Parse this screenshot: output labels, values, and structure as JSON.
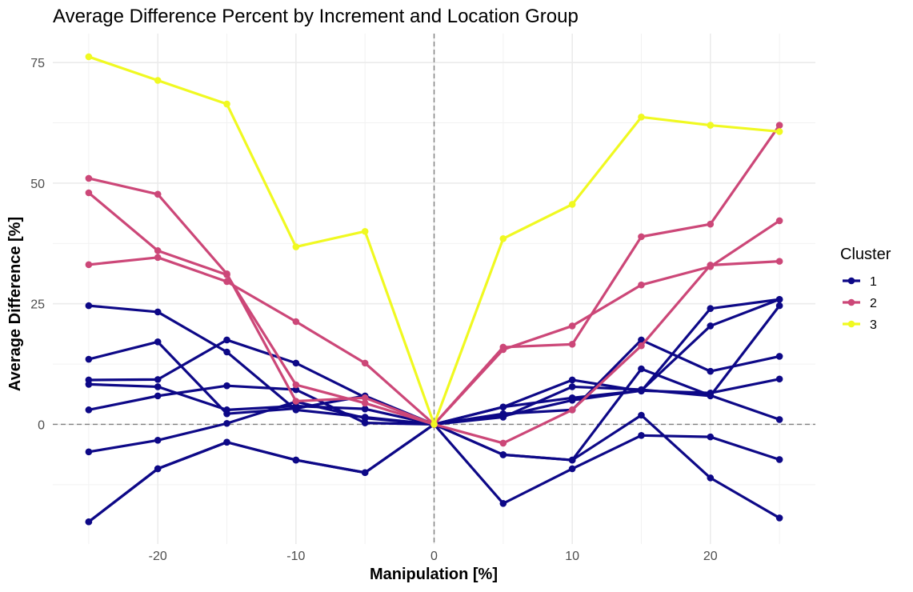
{
  "chart_data": {
    "type": "line",
    "title": "Average Difference Percent by Increment and Location Group",
    "xlabel": "Manipulation [%]",
    "ylabel": "Average Difference [%]",
    "xlim": [
      -27.6,
      27.6
    ],
    "ylim": [
      -24.8,
      81
    ],
    "x_ticks": [
      -20,
      -10,
      0,
      10,
      20
    ],
    "y_ticks": [
      0,
      25,
      50,
      75
    ],
    "x_tick_labels": [
      "-20",
      "-10",
      "0",
      "10",
      "20"
    ],
    "y_tick_labels": [
      "0",
      "25",
      "50",
      "75"
    ],
    "grid": true,
    "reference_lines": {
      "x": 0,
      "y": 0,
      "style": "dashed"
    },
    "legend": {
      "title": "Cluster",
      "placement": "right",
      "entries": [
        {
          "label": "1",
          "color": "#0d0887"
        },
        {
          "label": "2",
          "color": "#cc4778"
        },
        {
          "label": "3",
          "color": "#f0f921"
        }
      ]
    },
    "x": [
      -25,
      -20,
      -15,
      -10,
      -5,
      0,
      5,
      10,
      15,
      20,
      25
    ],
    "series": [
      {
        "cluster": "1",
        "color": "#0d0887",
        "values": [
          24.6,
          23.3,
          15.0,
          3.0,
          1.5,
          0,
          1.5,
          7.8,
          7.2,
          5.9,
          24.6
        ]
      },
      {
        "cluster": "1",
        "color": "#0d0887",
        "values": [
          13.5,
          17.1,
          2.2,
          3.3,
          5.9,
          0,
          3.6,
          5.5,
          7.0,
          20.4,
          25.9
        ]
      },
      {
        "cluster": "1",
        "color": "#0d0887",
        "values": [
          9.2,
          9.3,
          17.5,
          12.7,
          5.6,
          0,
          2.2,
          3.0,
          17.5,
          11.0,
          14.1
        ]
      },
      {
        "cluster": "1",
        "color": "#0d0887",
        "values": [
          8.3,
          7.8,
          3.0,
          3.8,
          3.2,
          0,
          1.7,
          5.0,
          7.0,
          6.5,
          9.4
        ]
      },
      {
        "cluster": "1",
        "color": "#0d0887",
        "values": [
          3.0,
          5.9,
          8.0,
          7.2,
          0.3,
          0,
          3.6,
          9.2,
          6.9,
          24.0,
          25.9
        ]
      },
      {
        "cluster": "1",
        "color": "#0d0887",
        "values": [
          -5.7,
          -3.3,
          0.2,
          4.7,
          1.3,
          0,
          -6.3,
          -7.4,
          11.5,
          6.0,
          1.0
        ]
      },
      {
        "cluster": "1",
        "color": "#0d0887",
        "values": [
          -20.2,
          -9.2,
          -3.7,
          -7.4,
          -10.0,
          0,
          -16.4,
          -9.2,
          -2.3,
          -2.6,
          -7.3
        ]
      },
      {
        "cluster": "1",
        "color": "#0d0887",
        "values": [
          -20.2,
          -9.2,
          -3.7,
          -7.4,
          -10.0,
          0,
          -6.3,
          -7.4,
          1.9,
          -11.1,
          -19.4
        ]
      },
      {
        "cluster": "2",
        "color": "#cc4778",
        "values": [
          51.0,
          47.7,
          31.2,
          4.8,
          5.5,
          0,
          16.0,
          16.6,
          38.9,
          41.5,
          62.0
        ]
      },
      {
        "cluster": "2",
        "color": "#cc4778",
        "values": [
          48.0,
          36.0,
          31.0,
          8.2,
          4.4,
          0,
          -3.9,
          3.0,
          16.3,
          33.0,
          33.8
        ]
      },
      {
        "cluster": "2",
        "color": "#cc4778",
        "values": [
          33.1,
          34.6,
          29.6,
          21.3,
          12.7,
          0,
          15.5,
          20.4,
          28.9,
          32.7,
          42.2
        ]
      },
      {
        "cluster": "3",
        "color": "#f0f921",
        "values": [
          76.2,
          71.3,
          66.4,
          36.8,
          40.0,
          0,
          38.5,
          45.6,
          63.7,
          62.0,
          60.7
        ]
      }
    ]
  }
}
